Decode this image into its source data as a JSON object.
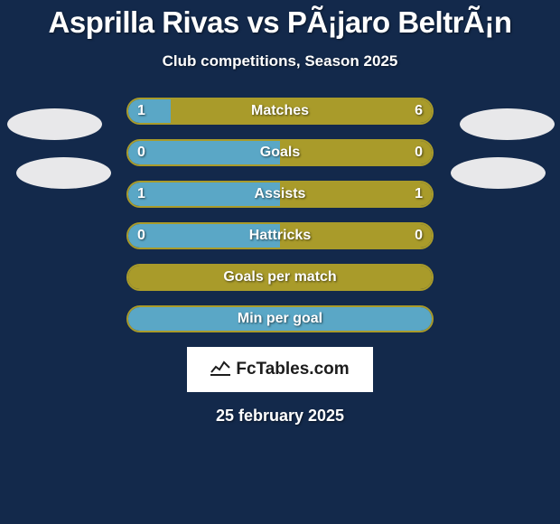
{
  "title": "Asprilla Rivas vs PÃ¡jaro BeltrÃ¡n",
  "subtitle": "Club competitions, Season 2025",
  "colors": {
    "background": "#13294b",
    "left_team": "#5aa7c6",
    "right_team": "#a99b2a",
    "text": "#ffffff",
    "avatar": "#e8e8ea",
    "logo_bg": "#ffffff",
    "logo_text": "#1d1d1d"
  },
  "rows": [
    {
      "label": "Matches",
      "left": "1",
      "right": "6",
      "left_pct": 14,
      "right_pct": 86,
      "show_vals_inside": true
    },
    {
      "label": "Goals",
      "left": "0",
      "right": "0",
      "left_pct": 50,
      "right_pct": 50,
      "show_vals_inside": true
    },
    {
      "label": "Assists",
      "left": "1",
      "right": "1",
      "left_pct": 50,
      "right_pct": 50,
      "show_vals_inside": true
    },
    {
      "label": "Hattricks",
      "left": "0",
      "right": "0",
      "left_pct": 50,
      "right_pct": 50,
      "show_vals_inside": true
    },
    {
      "label": "Goals per match",
      "left": "",
      "right": "",
      "left_pct": 0,
      "right_pct": 100,
      "show_vals_inside": false
    },
    {
      "label": "Min per goal",
      "left": "",
      "right": "",
      "left_pct": 100,
      "right_pct": 0,
      "show_vals_inside": false
    }
  ],
  "bar": {
    "track_width": 340,
    "track_height": 30,
    "border_radius": 15,
    "label_fontsize": 16
  },
  "logo": {
    "text": "FcTables.com"
  },
  "date": "25 february 2025"
}
